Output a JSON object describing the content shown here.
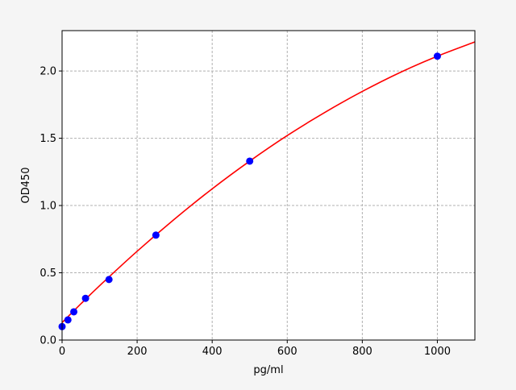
{
  "chart_data": {
    "type": "scatter",
    "title": "",
    "xlabel": "pg/ml",
    "ylabel": "OD450",
    "xlim": [
      0,
      1100
    ],
    "ylim": [
      0,
      2.3
    ],
    "xticks": [
      0,
      200,
      400,
      600,
      800,
      1000
    ],
    "xtick_labels": [
      "0",
      "200",
      "400",
      "600",
      "800",
      "1000"
    ],
    "yticks": [
      0,
      0.5,
      1.0,
      1.5,
      2.0
    ],
    "ytick_labels": [
      "0.0",
      "0.5",
      "1.0",
      "1.5",
      "2.0"
    ],
    "grid": true,
    "points": {
      "color": "#0000ff",
      "x": [
        0,
        15.6,
        31.25,
        62.5,
        125,
        250,
        500,
        1000
      ],
      "y": [
        0.1,
        0.15,
        0.21,
        0.31,
        0.45,
        0.78,
        1.33,
        2.11
      ]
    },
    "fit_curve": {
      "color": "#ff0000",
      "x": [
        0,
        50,
        100,
        200,
        300,
        400,
        500,
        600,
        700,
        800,
        900,
        1000,
        1100
      ],
      "y": [
        0.13,
        0.269,
        0.404,
        0.66,
        0.9,
        1.124,
        1.33,
        1.52,
        1.692,
        1.848,
        1.988,
        2.11,
        2.216
      ]
    }
  }
}
